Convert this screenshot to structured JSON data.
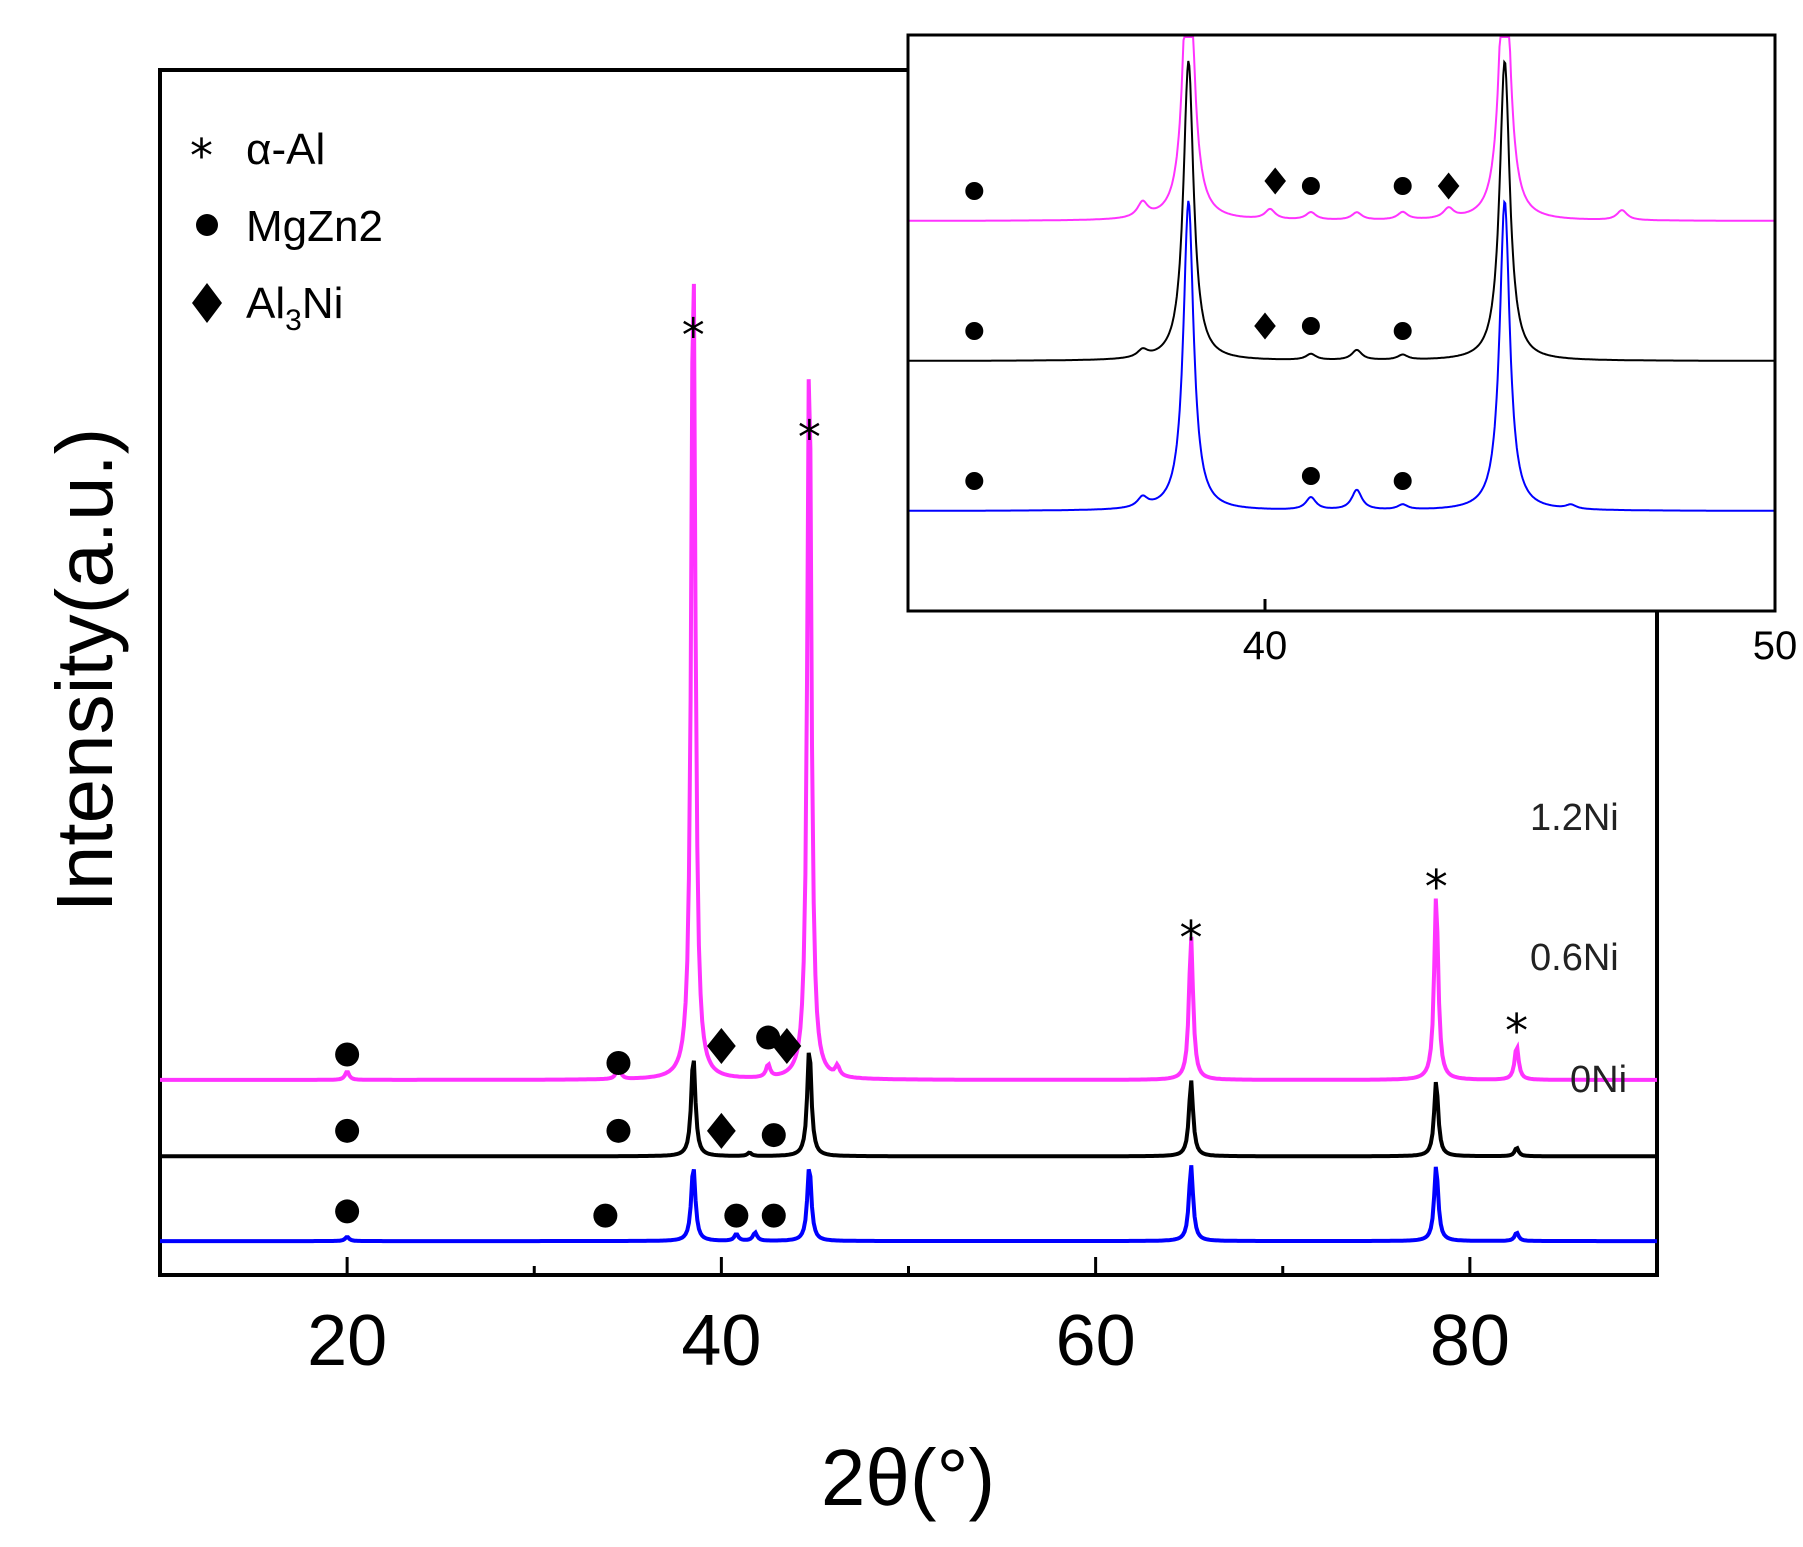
{
  "chart_data": [
    {
      "type": "line",
      "role": "main",
      "xlabel": "2θ(°)",
      "ylabel": "Intensity(a.u.)",
      "xlim": [
        10,
        90
      ],
      "xticks": [
        20,
        40,
        60,
        80
      ],
      "x_minor_ticks": [
        30,
        50,
        70,
        90
      ],
      "legend": [
        {
          "symbol": "*",
          "marker": "star",
          "label": "α-Al"
        },
        {
          "symbol": "●",
          "marker": "circle",
          "label": "MgZn2"
        },
        {
          "symbol": "◆",
          "marker": "diamond",
          "label_main": "Al",
          "label_sub": "3",
          "label_tail": "Ni"
        }
      ],
      "series": [
        {
          "name": "1.2Ni",
          "color": "#ff33ff",
          "baseline": 23,
          "peaks": [
            [
              38.5,
              100
            ],
            [
              44.7,
              88
            ],
            [
              65.1,
              17
            ],
            [
              78.2,
              22
            ],
            [
              82.5,
              4
            ],
            [
              34.5,
              1.5
            ],
            [
              42.5,
              1.5
            ],
            [
              46.2,
              1.2
            ],
            [
              20,
              1
            ]
          ],
          "phase_markers": [
            {
              "type": "circle",
              "x": 20,
              "y": 26
            },
            {
              "type": "circle",
              "x": 34.5,
              "y": 25
            },
            {
              "type": "diamond",
              "x": 40.0,
              "y": 27
            },
            {
              "type": "circle",
              "x": 42.5,
              "y": 28
            },
            {
              "type": "diamond",
              "x": 43.5,
              "y": 27
            },
            {
              "type": "star",
              "x": 38.5,
              "y": 111
            },
            {
              "type": "star",
              "x": 44.7,
              "y": 99
            },
            {
              "type": "star",
              "x": 65.1,
              "y": 40
            },
            {
              "type": "star",
              "x": 78.2,
              "y": 46
            },
            {
              "type": "star",
              "x": 82.5,
              "y": 29
            }
          ]
        },
        {
          "name": "0.6Ni",
          "color": "#000000",
          "baseline": 14,
          "peaks": [
            [
              38.5,
              12
            ],
            [
              44.7,
              13
            ],
            [
              65.1,
              9
            ],
            [
              78.2,
              9
            ],
            [
              82.5,
              1
            ],
            [
              41.5,
              0.4
            ]
          ],
          "phase_markers": [
            {
              "type": "circle",
              "x": 20,
              "y": 17
            },
            {
              "type": "circle",
              "x": 34.5,
              "y": 17
            },
            {
              "type": "diamond",
              "x": 40.0,
              "y": 17
            },
            {
              "type": "circle",
              "x": 42.8,
              "y": 16.5
            }
          ]
        },
        {
          "name": "0Ni",
          "color": "#0000ff",
          "baseline": 4,
          "peaks": [
            [
              38.5,
              9
            ],
            [
              44.7,
              9
            ],
            [
              65.1,
              9
            ],
            [
              78.2,
              9
            ],
            [
              82.5,
              1
            ],
            [
              40.8,
              0.8
            ],
            [
              41.8,
              1
            ],
            [
              20,
              0.5
            ]
          ],
          "phase_markers": [
            {
              "type": "circle",
              "x": 20,
              "y": 7.5
            },
            {
              "type": "circle",
              "x": 33.8,
              "y": 7
            },
            {
              "type": "circle",
              "x": 40.8,
              "y": 7
            },
            {
              "type": "circle",
              "x": 42.8,
              "y": 7
            }
          ]
        }
      ]
    },
    {
      "type": "line",
      "role": "inset",
      "xlim": [
        33,
        50
      ],
      "xticks": [
        40,
        50
      ],
      "series": [
        {
          "name": "1.2Ni",
          "color": "#ff33ff",
          "baseline": 78,
          "peaks": [
            [
              38.5,
              60
            ],
            [
              44.7,
              60
            ],
            [
              37.6,
              3
            ],
            [
              40.1,
              2
            ],
            [
              40.9,
              1.5
            ],
            [
              41.8,
              1.5
            ],
            [
              42.7,
              1.5
            ],
            [
              43.6,
              2
            ],
            [
              47.0,
              2
            ]
          ],
          "phase_markers": [
            {
              "type": "circle",
              "x": 34.3,
              "y": 84
            },
            {
              "type": "diamond",
              "x": 40.2,
              "y": 86
            },
            {
              "type": "circle",
              "x": 40.9,
              "y": 85
            },
            {
              "type": "circle",
              "x": 42.7,
              "y": 85
            },
            {
              "type": "diamond",
              "x": 43.6,
              "y": 85
            }
          ]
        },
        {
          "name": "0.6Ni",
          "color": "#000000",
          "baseline": 50,
          "peaks": [
            [
              38.5,
              60
            ],
            [
              44.7,
              60
            ],
            [
              37.6,
              1.5
            ],
            [
              40.9,
              1.2
            ],
            [
              41.8,
              2
            ],
            [
              42.7,
              1
            ]
          ],
          "phase_markers": [
            {
              "type": "circle",
              "x": 34.3,
              "y": 56
            },
            {
              "type": "diamond",
              "x": 40.0,
              "y": 57
            },
            {
              "type": "circle",
              "x": 40.9,
              "y": 57
            },
            {
              "type": "circle",
              "x": 42.7,
              "y": 56
            }
          ]
        },
        {
          "name": "0Ni",
          "color": "#0000ff",
          "baseline": 20,
          "peaks": [
            [
              38.5,
              62
            ],
            [
              44.7,
              62
            ],
            [
              37.6,
              2
            ],
            [
              40.9,
              2.5
            ],
            [
              41.8,
              4
            ],
            [
              42.7,
              1
            ],
            [
              46.0,
              0.8
            ]
          ],
          "phase_markers": [
            {
              "type": "circle",
              "x": 34.3,
              "y": 26
            },
            {
              "type": "circle",
              "x": 40.9,
              "y": 27
            },
            {
              "type": "circle",
              "x": 42.7,
              "y": 26
            }
          ]
        }
      ]
    }
  ]
}
